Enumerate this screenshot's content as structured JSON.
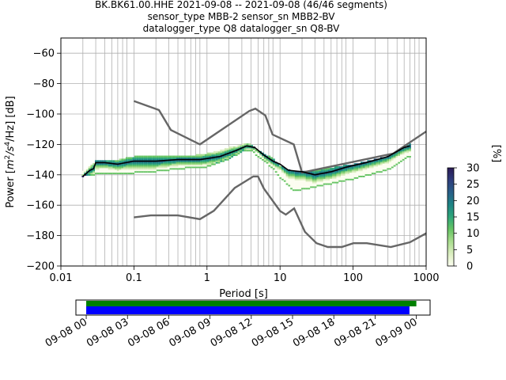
{
  "chart_data": {
    "type": "heatmap",
    "title_lines": [
      "BK.BK61.00.HHE   2021-09-08 -- 2021-09-08  (46/46 segments)",
      "sensor_type MBB-2 sensor_sn MBB2-BV",
      "datalogger_type Q8 datalogger_sn Q8-BV"
    ],
    "xlabel": "Period [s]",
    "ylabel_parts": {
      "pre": "Power [",
      "m": "m",
      "exp1": "2",
      "mid": "/s",
      "exp2": "4",
      "post": "/Hz] [dB]"
    },
    "x_scale": "log",
    "xlim": [
      0.01,
      1000
    ],
    "ylim": [
      -200,
      -50
    ],
    "x_ticks": [
      {
        "v": 0.01,
        "label": "0.01"
      },
      {
        "v": 0.1,
        "label": "0.1"
      },
      {
        "v": 1,
        "label": "1"
      },
      {
        "v": 10,
        "label": "10"
      },
      {
        "v": 100,
        "label": "100"
      },
      {
        "v": 1000,
        "label": "1000"
      }
    ],
    "y_ticks": [
      {
        "v": -60,
        "label": "−60"
      },
      {
        "v": -80,
        "label": "−80"
      },
      {
        "v": -100,
        "label": "−100"
      },
      {
        "v": -120,
        "label": "−120"
      },
      {
        "v": -140,
        "label": "−140"
      },
      {
        "v": -160,
        "label": "−160"
      },
      {
        "v": -180,
        "label": "−180"
      },
      {
        "v": -200,
        "label": "−200"
      }
    ],
    "grid": true,
    "grid_periods": [
      0.02,
      0.03,
      0.04,
      0.05,
      0.06,
      0.07,
      0.08,
      0.1,
      0.2,
      0.3,
      0.4,
      0.5,
      0.6,
      0.7,
      0.8,
      1,
      2,
      3,
      4,
      5,
      6,
      7,
      8,
      10,
      20,
      30,
      40,
      50,
      60,
      70,
      80,
      100,
      200,
      300,
      400,
      500,
      600,
      700,
      800
    ],
    "mean_psd": {
      "name": "",
      "color": "#000000",
      "period": [
        0.02,
        0.025,
        0.028,
        0.03,
        0.04,
        0.06,
        0.1,
        0.2,
        0.4,
        0.8,
        1.5,
        2.5,
        3.5,
        4.5,
        6,
        8,
        10,
        13,
        20,
        30,
        50,
        80,
        150,
        300,
        500,
        600
      ],
      "db": [
        -141,
        -137,
        -136,
        -132,
        -132,
        -133,
        -131,
        -131,
        -130,
        -130,
        -128,
        -124,
        -121,
        -122,
        -127,
        -131,
        -133,
        -137,
        -138,
        -140,
        -138,
        -135,
        -132,
        -128,
        -122,
        -121
      ]
    },
    "noise_models": [
      {
        "name": "high",
        "color": "#666666",
        "period": [
          0.1,
          0.22,
          0.32,
          0.8,
          3.8,
          4.6,
          6.3,
          7.9,
          15.4,
          20,
          354.8,
          1000
        ],
        "db": [
          -91.5,
          -97.4,
          -110.5,
          -120,
          -98,
          -96.5,
          -101,
          -113.5,
          -120,
          -138.5,
          -126,
          -111.5
        ]
      },
      {
        "name": "low",
        "color": "#666666",
        "period": [
          0.1,
          0.17,
          0.4,
          0.8,
          1.24,
          2.4,
          4.3,
          5,
          6,
          10,
          12,
          15.6,
          21.9,
          31.6,
          45,
          70,
          101,
          154,
          328,
          600,
          1000
        ],
        "db": [
          -168,
          -166.7,
          -166.7,
          -169.2,
          -163.7,
          -148.6,
          -141.1,
          -141.1,
          -149,
          -163.8,
          -166.2,
          -162.1,
          -177.5,
          -185,
          -187.5,
          -187.5,
          -185,
          -185,
          -187.5,
          -184.4,
          -178.5
        ]
      }
    ],
    "pdf_band": {
      "note": "probability density band of power values",
      "period": [
        0.02,
        0.03,
        0.05,
        0.1,
        0.2,
        0.5,
        1,
        2,
        3,
        4,
        5,
        8,
        10,
        15,
        20,
        40,
        100,
        300,
        600
      ],
      "db_low": [
        -141,
        -140,
        -139,
        -139,
        -138,
        -136,
        -135,
        -130,
        -125,
        -124,
        -128,
        -136,
        -142,
        -150,
        -150,
        -147,
        -143,
        -137,
        -128
      ],
      "db_high": [
        -138,
        -131,
        -131,
        -128,
        -127,
        -128,
        -126,
        -122,
        -120,
        -120,
        -124,
        -129,
        -134,
        -138,
        -138,
        -136,
        -133,
        -128,
        -120
      ]
    },
    "colorbar": {
      "label": "[%]",
      "range": [
        0,
        30
      ],
      "ticks": [
        {
          "v": 0,
          "label": "0"
        },
        {
          "v": 5,
          "label": "5"
        },
        {
          "v": 10,
          "label": "10"
        },
        {
          "v": 15,
          "label": "15"
        },
        {
          "v": 20,
          "label": "20"
        },
        {
          "v": 25,
          "label": "25"
        },
        {
          "v": 30,
          "label": "30"
        }
      ],
      "colors": [
        "#fcfdf0",
        "#dbeec0",
        "#a9dd8e",
        "#66c464",
        "#2fa67a",
        "#1e8485",
        "#285f88",
        "#2e3d7c",
        "#2a1a56"
      ]
    },
    "coverage": {
      "xlim_hours": [
        -0.75,
        25.0
      ],
      "tick_hours": [
        0,
        3,
        6,
        9,
        12,
        15,
        18,
        21,
        24
      ],
      "tick_labels": [
        "09-08 00",
        "09-08 03",
        "09-08 06",
        "09-08 09",
        "09-08 12",
        "09-08 15",
        "09-08 18",
        "09-08 21",
        "09-09 00"
      ],
      "bars": [
        {
          "name": "data",
          "color": "#008000",
          "start_h": 0.0,
          "end_h": 24.0
        },
        {
          "name": "psd",
          "color": "#0000ff",
          "start_h": 0.0,
          "end_h": 23.5
        }
      ]
    }
  }
}
